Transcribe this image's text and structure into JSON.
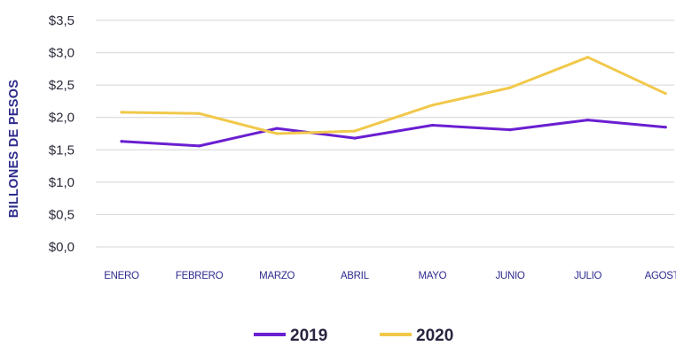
{
  "chart_data": {
    "type": "line",
    "ylabel": "BILLONES DE PESOS",
    "xlabel": "",
    "ylim": [
      0,
      3.5
    ],
    "yticks": [
      {
        "value": 0.0,
        "label": "$0,0"
      },
      {
        "value": 0.5,
        "label": "$0,5"
      },
      {
        "value": 1.0,
        "label": "$1,0"
      },
      {
        "value": 1.5,
        "label": "$1,5"
      },
      {
        "value": 2.0,
        "label": "$2,0"
      },
      {
        "value": 2.5,
        "label": "$2,5"
      },
      {
        "value": 3.0,
        "label": "$3,0"
      },
      {
        "value": 3.5,
        "label": "$3,5"
      }
    ],
    "categories": [
      "ENERO",
      "FEBRERO",
      "MARZO",
      "ABRIL",
      "MAYO",
      "JUNIO",
      "JULIO",
      "AGOSTO"
    ],
    "series": [
      {
        "name": "2019",
        "color": "#6a1fd1",
        "values": [
          1.63,
          1.56,
          1.83,
          1.68,
          1.88,
          1.81,
          1.96,
          1.85
        ]
      },
      {
        "name": "2020",
        "color": "#f1c84a",
        "values": [
          2.08,
          2.06,
          1.75,
          1.79,
          2.19,
          2.46,
          2.93,
          2.37
        ]
      }
    ],
    "grid": true,
    "legend_position": "bottom-center"
  }
}
